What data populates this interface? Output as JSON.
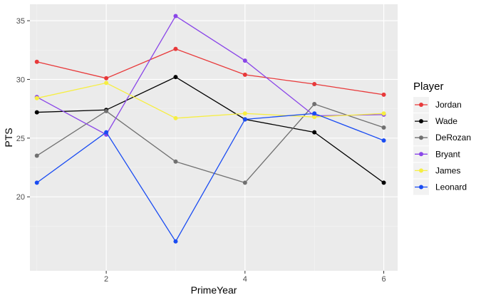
{
  "chart_data": {
    "type": "line",
    "xlabel": "PrimeYear",
    "ylabel": "PTS",
    "xlim": [
      0.9,
      6.2
    ],
    "ylim": [
      13.7,
      36.4
    ],
    "x_ticks": [
      2,
      4,
      6
    ],
    "y_ticks": [
      20,
      25,
      30,
      35
    ],
    "x": [
      1,
      2,
      3,
      4,
      5,
      6
    ],
    "grid": true,
    "legend_title": "Player",
    "legend_position": "right",
    "series": [
      {
        "name": "Jordan",
        "color": "#e8393a",
        "values": [
          31.5,
          30.1,
          32.6,
          30.4,
          29.6,
          28.7
        ]
      },
      {
        "name": "Wade",
        "color": "#000000",
        "values": [
          27.2,
          27.4,
          30.2,
          26.6,
          25.5,
          21.2
        ]
      },
      {
        "name": "DeRozan",
        "color": "#707070",
        "values": [
          23.5,
          27.3,
          23.0,
          21.2,
          27.9,
          25.9
        ]
      },
      {
        "name": "Bryant",
        "color": "#8a46e8",
        "values": [
          28.5,
          25.3,
          35.4,
          31.6,
          26.9,
          27.0
        ]
      },
      {
        "name": "James",
        "color": "#f6ee42",
        "values": [
          28.4,
          29.7,
          26.7,
          27.1,
          26.8,
          27.1
        ]
      },
      {
        "name": "Leonard",
        "color": "#1a4cf2",
        "values": [
          21.2,
          25.5,
          16.2,
          26.6,
          27.1,
          24.8
        ]
      }
    ]
  }
}
